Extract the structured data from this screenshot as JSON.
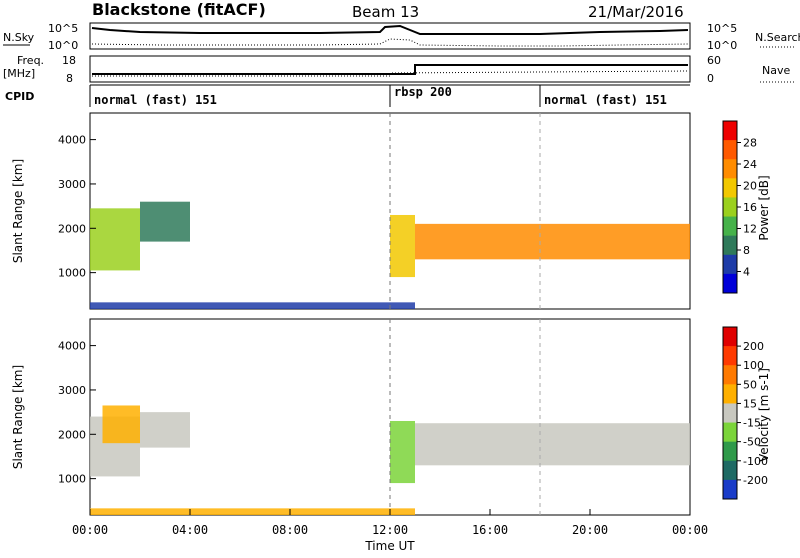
{
  "header": {
    "station": "Blackstone (fitACF)",
    "beam": "Beam 13",
    "date": "21/Mar/2016"
  },
  "top_panels": {
    "nsky_label": "N.Sky",
    "nsky_ticks": [
      "10^5",
      "10^0"
    ],
    "nsearch_label": "N.Search",
    "nsearch_ticks": [
      "10^5",
      "10^0"
    ],
    "freq_label": "Freq.",
    "freq_unit": "[MHz]",
    "freq_ticks": [
      "18",
      "8"
    ],
    "nave_label": "Nave",
    "nave_ticks": [
      "60",
      "0"
    ],
    "cpid_label": "CPID",
    "cpid_segments": [
      {
        "label": "normal (fast) 151",
        "start_h": 0,
        "end_h": 12
      },
      {
        "label": "rbsp 200",
        "start_h": 12,
        "end_h": 18
      },
      {
        "label": "normal (fast) 151",
        "start_h": 18,
        "end_h": 24
      }
    ]
  },
  "chart_data": [
    {
      "type": "heatmap",
      "title": "Power",
      "ylabel": "Slant Range [km]",
      "xlabel": "Time UT",
      "ylim": [
        180,
        4600
      ],
      "xlim": [
        0,
        24
      ],
      "yticks": [
        "1000",
        "2000",
        "3000",
        "4000"
      ],
      "colorbar_label": "Power [dB]",
      "colorbar_ticks": [
        "28",
        "24",
        "20",
        "16",
        "12",
        "8",
        "4"
      ],
      "colors": [
        "#0000d8",
        "#1e3ca8",
        "#2f7a5a",
        "#46b24a",
        "#9bd01e",
        "#f2c800",
        "#ff8c00",
        "#ff5a00",
        "#ee0000"
      ],
      "bands": [
        {
          "t_start": 0.0,
          "t_end": 2.0,
          "r_start": 1050,
          "r_end": 2450,
          "color_index": 4
        },
        {
          "t_start": 2.0,
          "t_end": 4.0,
          "r_start": 1700,
          "r_end": 2600,
          "color_index": 2
        },
        {
          "t_start": 12.0,
          "t_end": 13.0,
          "r_start": 900,
          "r_end": 2300,
          "color_index": 5
        },
        {
          "t_start": 13.0,
          "t_end": 24.0,
          "r_start": 1300,
          "r_end": 2100,
          "color_index": 6
        },
        {
          "t_start": 0.0,
          "t_end": 13.0,
          "r_start": 180,
          "r_end": 330,
          "color_index": 1
        }
      ]
    },
    {
      "type": "heatmap",
      "title": "Velocity",
      "ylabel": "Slant Range [km]",
      "xlabel": "Time UT",
      "ylim": [
        180,
        4600
      ],
      "xlim": [
        0,
        24
      ],
      "yticks": [
        "1000",
        "2000",
        "3000",
        "4000"
      ],
      "colorbar_label": "Velocity [m s-1]",
      "colorbar_ticks": [
        "200",
        "100",
        "50",
        "15",
        "-15",
        "-50",
        "-100",
        "-200"
      ],
      "colors": [
        "#1a3cc8",
        "#1e6a64",
        "#2f9a4a",
        "#7bd43a",
        "#c8c8c0",
        "#ffb000",
        "#ff7a00",
        "#ff3a00",
        "#e00000"
      ],
      "bands": [
        {
          "t_start": 0.0,
          "t_end": 2.0,
          "r_start": 1050,
          "r_end": 2400,
          "color_index": 4
        },
        {
          "t_start": 2.0,
          "t_end": 4.0,
          "r_start": 1700,
          "r_end": 2500,
          "color_index": 4
        },
        {
          "t_start": 0.5,
          "t_end": 2.0,
          "r_start": 1800,
          "r_end": 2650,
          "color_index": 5
        },
        {
          "t_start": 12.0,
          "t_end": 13.0,
          "r_start": 900,
          "r_end": 2300,
          "color_index": 3
        },
        {
          "t_start": 13.0,
          "t_end": 24.0,
          "r_start": 1300,
          "r_end": 2250,
          "color_index": 4
        },
        {
          "t_start": 0.0,
          "t_end": 13.0,
          "r_start": 180,
          "r_end": 330,
          "color_index": 5
        }
      ]
    }
  ],
  "x_axis": {
    "ticks": [
      "00:00",
      "04:00",
      "08:00",
      "12:00",
      "16:00",
      "20:00",
      "00:00"
    ],
    "label": "Time UT"
  }
}
